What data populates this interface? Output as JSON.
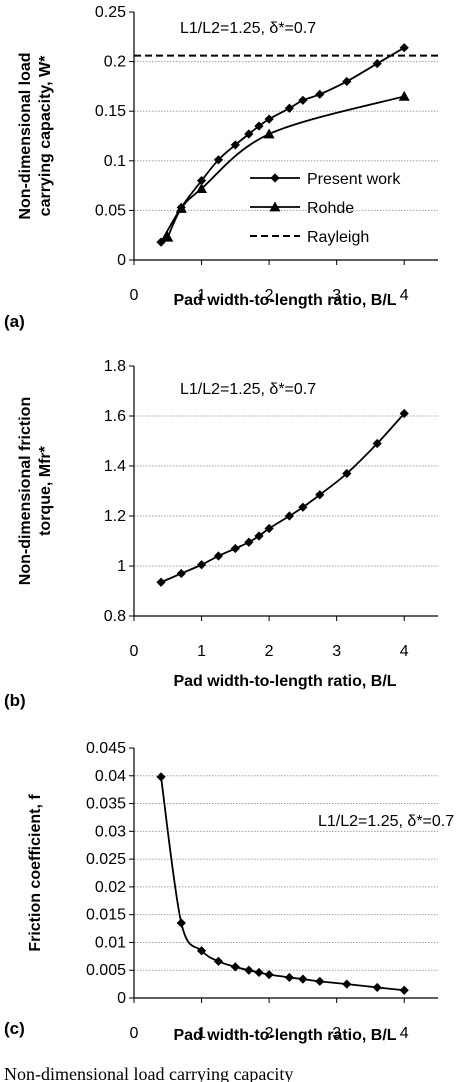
{
  "chart_data": [
    {
      "type": "line",
      "panel_label": "(a)",
      "xlabel": "Pad width-to-length ratio, B/L",
      "ylabel": [
        "Non-dimensional load",
        "carrying capacity, W*"
      ],
      "annotation": "L1/L2=1.25, δ*=0.7",
      "xlim": [
        0,
        4.5
      ],
      "ylim": [
        0,
        0.25
      ],
      "xticks": [
        "0",
        "1",
        "2",
        "3",
        "4"
      ],
      "yticks": [
        "0",
        "0.05",
        "0.1",
        "0.15",
        "0.2",
        "0.25"
      ],
      "grid": true,
      "legend_position": "bottom-right",
      "series": [
        {
          "name": "Present work",
          "marker": "diamond",
          "x": [
            0.4,
            0.7,
            1.0,
            1.25,
            1.5,
            1.7,
            1.85,
            2.0,
            2.3,
            2.5,
            2.75,
            3.15,
            3.6,
            4.0
          ],
          "y": [
            0.018,
            0.053,
            0.08,
            0.101,
            0.116,
            0.127,
            0.135,
            0.142,
            0.153,
            0.161,
            0.167,
            0.18,
            0.198,
            0.214
          ]
        },
        {
          "name": "Rohde",
          "marker": "triangle",
          "x": [
            0.5,
            0.7,
            1.0,
            2.0,
            4.0
          ],
          "y": [
            0.023,
            0.052,
            0.072,
            0.127,
            0.165
          ]
        },
        {
          "name": "Rayleigh",
          "marker": "none",
          "dashed": true,
          "x": [
            0,
            4.5
          ],
          "y": [
            0.206,
            0.206
          ]
        }
      ]
    },
    {
      "type": "line",
      "panel_label": "(b)",
      "xlabel": "Pad width-to-length ratio, B/L",
      "ylabel": [
        "Non-dimensional friction",
        "torque, Mfr*"
      ],
      "annotation": "L1/L2=1.25, δ*=0.7",
      "xlim": [
        0,
        4.5
      ],
      "ylim": [
        0.8,
        1.8
      ],
      "xticks": [
        "0",
        "1",
        "2",
        "3",
        "4"
      ],
      "yticks": [
        "0.8",
        "1",
        "1.2",
        "1.4",
        "1.6",
        "1.8"
      ],
      "grid": true,
      "series": [
        {
          "marker": "diamond",
          "x": [
            0.4,
            0.7,
            1.0,
            1.25,
            1.5,
            1.7,
            1.85,
            2.0,
            2.3,
            2.5,
            2.75,
            3.15,
            3.6,
            4.0
          ],
          "y": [
            0.935,
            0.97,
            1.005,
            1.04,
            1.07,
            1.095,
            1.12,
            1.15,
            1.2,
            1.235,
            1.285,
            1.37,
            1.49,
            1.61
          ]
        }
      ]
    },
    {
      "type": "line",
      "panel_label": "(c)",
      "xlabel": "Pad width-to-length ratio, B/L",
      "ylabel": [
        "Friction coefficient, f"
      ],
      "annotation": "L1/L2=1.25, δ*=0.7",
      "xlim": [
        0,
        4.5
      ],
      "ylim": [
        0,
        0.045
      ],
      "xticks": [
        "0",
        "1",
        "2",
        "3",
        "4"
      ],
      "yticks": [
        "0",
        "0.005",
        "0.01",
        "0.015",
        "0.02",
        "0.025",
        "0.03",
        "0.035",
        "0.04",
        "0.045"
      ],
      "grid": true,
      "series": [
        {
          "marker": "diamond",
          "x": [
            0.4,
            0.7,
            1.0,
            1.25,
            1.5,
            1.7,
            1.85,
            2.0,
            2.3,
            2.5,
            2.75,
            3.15,
            3.6,
            4.0
          ],
          "y": [
            0.0398,
            0.0135,
            0.0085,
            0.0066,
            0.0056,
            0.005,
            0.0046,
            0.0042,
            0.0037,
            0.0034,
            0.003,
            0.0025,
            0.0019,
            0.0014
          ]
        }
      ]
    }
  ],
  "caption": "Non-dimensional load carrying capacity"
}
